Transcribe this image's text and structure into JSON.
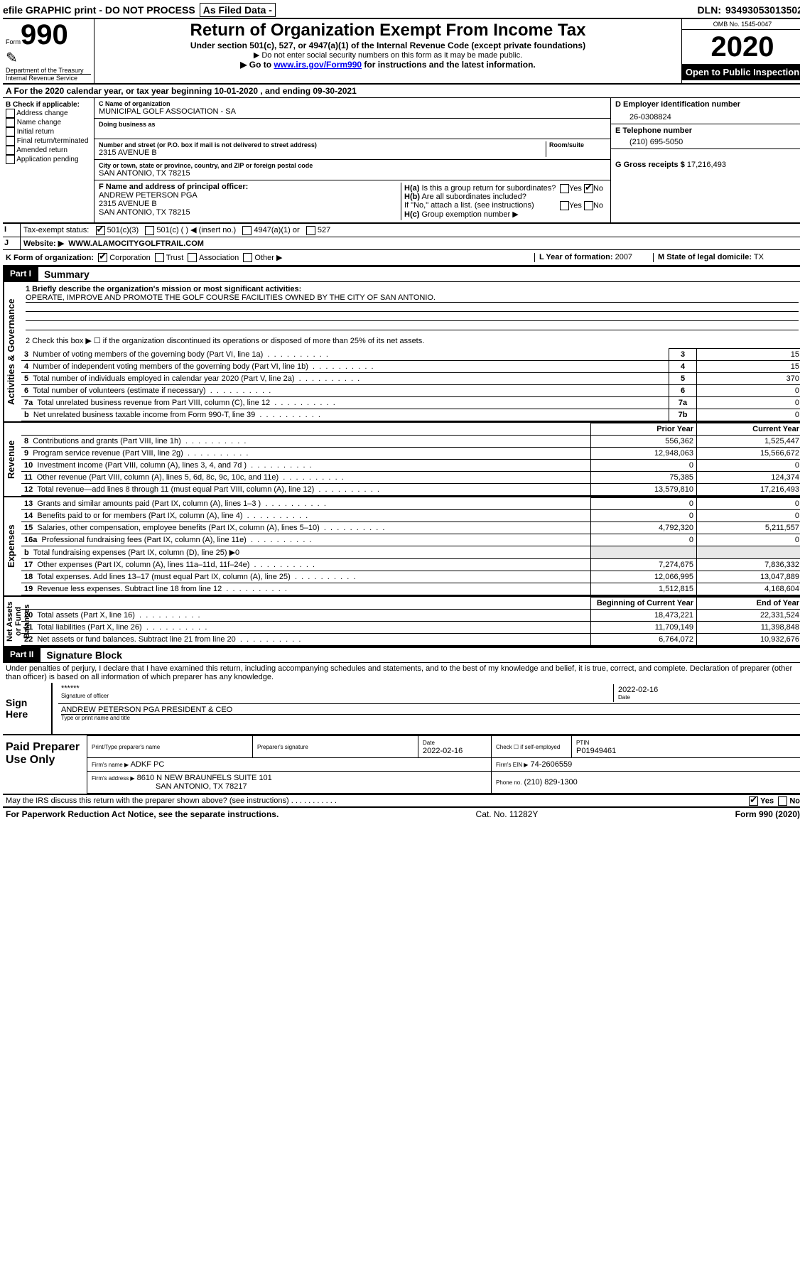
{
  "top_bar": {
    "efile": "efile GRAPHIC print - DO NOT PROCESS",
    "as_filed": "As Filed Data -",
    "dln_label": "DLN:",
    "dln": "93493053013502"
  },
  "header": {
    "form_word": "Form",
    "form_no": "990",
    "dept": "Department of the Treasury",
    "irs": "Internal Revenue Service",
    "title": "Return of Organization Exempt From Income Tax",
    "subtitle": "Under section 501(c), 527, or 4947(a)(1) of the Internal Revenue Code (except private foundations)",
    "note1": "▶ Do not enter social security numbers on this form as it may be made public.",
    "note2_a": "▶ Go to ",
    "note2_link": "www.irs.gov/Form990",
    "note2_b": " for instructions and the latest information.",
    "omb": "OMB No. 1545-0047",
    "year": "2020",
    "open": "Open to Public Inspection"
  },
  "row_a": "A  For the 2020 calendar year, or tax year beginning 10-01-2020   , and ending 09-30-2021",
  "section_b": {
    "title": "B Check if applicable:",
    "items": [
      "Address change",
      "Name change",
      "Initial return",
      "Final return/terminated",
      "Amended return",
      "Application pending"
    ]
  },
  "section_c": {
    "name_lbl": "C Name of organization",
    "name": "MUNICIPAL GOLF ASSOCIATION - SA",
    "dba_lbl": "Doing business as",
    "street_lbl": "Number and street (or P.O. box if mail is not delivered to street address)",
    "room_lbl": "Room/suite",
    "street": "2315 AVENUE B",
    "city_lbl": "City or town, state or province, country, and ZIP or foreign postal code",
    "city": "SAN ANTONIO, TX  78215",
    "f_lbl": "F  Name and address of principal officer:",
    "f_name": "ANDREW PETERSON PGA",
    "f_street": "2315 AVENUE B",
    "f_city": "SAN ANTONIO, TX  78215"
  },
  "section_d": {
    "d_lbl": "D Employer identification number",
    "d_val": "26-0308824",
    "e_lbl": "E Telephone number",
    "e_val": "(210) 695-5050",
    "g_lbl": "G Gross receipts $",
    "g_val": "17,216,493",
    "ha_lbl": "H(a)",
    "ha_txt": "Is this a group return for subordinates?",
    "hb_lbl": "H(b)",
    "hb_txt": "Are all subordinates included?",
    "h_note": "If \"No,\" attach a list. (see instructions)",
    "hc_lbl": "H(c)",
    "hc_txt": "Group exemption number ▶",
    "yes": "Yes",
    "no": "No"
  },
  "row_i": {
    "label": "Tax-exempt status:",
    "opts": [
      "501(c)(3)",
      "501(c) (   ) ◀ (insert no.)",
      "4947(a)(1) or",
      "527"
    ]
  },
  "row_j": {
    "label": "Website: ▶",
    "val": "WWW.ALAMOCITYGOLFTRAIL.COM"
  },
  "row_k": {
    "label": "K Form of organization:",
    "opts": [
      "Corporation",
      "Trust",
      "Association",
      "Other ▶"
    ],
    "l_lbl": "L Year of formation:",
    "l_val": "2007",
    "m_lbl": "M State of legal domicile:",
    "m_val": "TX"
  },
  "part1": {
    "tag": "Part I",
    "title": "Summary",
    "side_gov": "Activities & Governance",
    "side_rev": "Revenue",
    "side_exp": "Expenses",
    "side_net": "Net Assets or Fund Balances",
    "q1a": "1 Briefly describe the organization's mission or most significant activities:",
    "q1b": "OPERATE, IMPROVE AND PROMOTE THE GOLF COURSE FACILITIES OWNED BY THE CITY OF SAN ANTONIO.",
    "q2": "2  Check this box ▶ ☐ if the organization discontinued its operations or disposed of more than 25% of its net assets.",
    "lines_gov": [
      {
        "n": "3",
        "t": "Number of voting members of the governing body (Part VI, line 1a)",
        "c": "3",
        "v": "15"
      },
      {
        "n": "4",
        "t": "Number of independent voting members of the governing body (Part VI, line 1b)",
        "c": "4",
        "v": "15"
      },
      {
        "n": "5",
        "t": "Total number of individuals employed in calendar year 2020 (Part V, line 2a)",
        "c": "5",
        "v": "370"
      },
      {
        "n": "6",
        "t": "Total number of volunteers (estimate if necessary)",
        "c": "6",
        "v": "0"
      },
      {
        "n": "7a",
        "t": "Total unrelated business revenue from Part VIII, column (C), line 12",
        "c": "7a",
        "v": "0"
      },
      {
        "n": "b",
        "t": "Net unrelated business taxable income from Form 990-T, line 39",
        "c": "7b",
        "v": "0"
      }
    ],
    "hdr_prior": "Prior Year",
    "hdr_curr": "Current Year",
    "lines_rev": [
      {
        "n": "8",
        "t": "Contributions and grants (Part VIII, line 1h)",
        "p": "556,362",
        "c": "1,525,447"
      },
      {
        "n": "9",
        "t": "Program service revenue (Part VIII, line 2g)",
        "p": "12,948,063",
        "c": "15,566,672"
      },
      {
        "n": "10",
        "t": "Investment income (Part VIII, column (A), lines 3, 4, and 7d )",
        "p": "0",
        "c": "0"
      },
      {
        "n": "11",
        "t": "Other revenue (Part VIII, column (A), lines 5, 6d, 8c, 9c, 10c, and 11e)",
        "p": "75,385",
        "c": "124,374"
      },
      {
        "n": "12",
        "t": "Total revenue—add lines 8 through 11 (must equal Part VIII, column (A), line 12)",
        "p": "13,579,810",
        "c": "17,216,493"
      }
    ],
    "lines_exp": [
      {
        "n": "13",
        "t": "Grants and similar amounts paid (Part IX, column (A), lines 1–3 )",
        "p": "0",
        "c": "0"
      },
      {
        "n": "14",
        "t": "Benefits paid to or for members (Part IX, column (A), line 4)",
        "p": "0",
        "c": "0"
      },
      {
        "n": "15",
        "t": "Salaries, other compensation, employee benefits (Part IX, column (A), lines 5–10)",
        "p": "4,792,320",
        "c": "5,211,557"
      },
      {
        "n": "16a",
        "t": "Professional fundraising fees (Part IX, column (A), line 11e)",
        "p": "0",
        "c": "0"
      },
      {
        "n": "b",
        "t": "Total fundraising expenses (Part IX, column (D), line 25) ▶0",
        "p": "",
        "c": ""
      },
      {
        "n": "17",
        "t": "Other expenses (Part IX, column (A), lines 11a–11d, 11f–24e)",
        "p": "7,274,675",
        "c": "7,836,332"
      },
      {
        "n": "18",
        "t": "Total expenses. Add lines 13–17 (must equal Part IX, column (A), line 25)",
        "p": "12,066,995",
        "c": "13,047,889"
      },
      {
        "n": "19",
        "t": "Revenue less expenses. Subtract line 18 from line 12",
        "p": "1,512,815",
        "c": "4,168,604"
      }
    ],
    "hdr_beg": "Beginning of Current Year",
    "hdr_end": "End of Year",
    "lines_net": [
      {
        "n": "20",
        "t": "Total assets (Part X, line 16)",
        "p": "18,473,221",
        "c": "22,331,524"
      },
      {
        "n": "21",
        "t": "Total liabilities (Part X, line 26)",
        "p": "11,709,149",
        "c": "11,398,848"
      },
      {
        "n": "22",
        "t": "Net assets or fund balances. Subtract line 21 from line 20",
        "p": "6,764,072",
        "c": "10,932,676"
      }
    ]
  },
  "part2": {
    "tag": "Part II",
    "title": "Signature Block",
    "decl": "Under penalties of perjury, I declare that I have examined this return, including accompanying schedules and statements, and to the best of my knowledge and belief, it is true, correct, and complete. Declaration of preparer (other than officer) is based on all information of which preparer has any knowledge.",
    "sign_here": "Sign Here",
    "stars": "******",
    "sig_of": "Signature of officer",
    "date": "2022-02-16",
    "date_lbl": "Date",
    "officer": "ANDREW PETERSON PGA  PRESIDENT & CEO",
    "type_lbl": "Type or print name and title",
    "paid": "Paid Preparer Use Only",
    "prep_name_lbl": "Print/Type preparer's name",
    "prep_sig_lbl": "Preparer's signature",
    "prep_date_lbl": "Date",
    "prep_date": "2022-02-16",
    "check_lbl": "Check ☐ if self-employed",
    "ptin_lbl": "PTIN",
    "ptin": "P01949461",
    "firm_name_lbl": "Firm's name   ▶",
    "firm_name": "ADKF PC",
    "firm_ein_lbl": "Firm's EIN ▶",
    "firm_ein": "74-2606559",
    "firm_addr_lbl": "Firm's address ▶",
    "firm_addr1": "8610 N NEW BRAUNFELS SUITE 101",
    "firm_addr2": "SAN ANTONIO, TX  78217",
    "phone_lbl": "Phone no.",
    "phone": "(210) 829-1300",
    "discuss": "May the IRS discuss this return with the preparer shown above? (see instructions)"
  },
  "footer": {
    "left": "For Paperwork Reduction Act Notice, see the separate instructions.",
    "mid": "Cat. No. 11282Y",
    "right": "Form 990 (2020)"
  }
}
